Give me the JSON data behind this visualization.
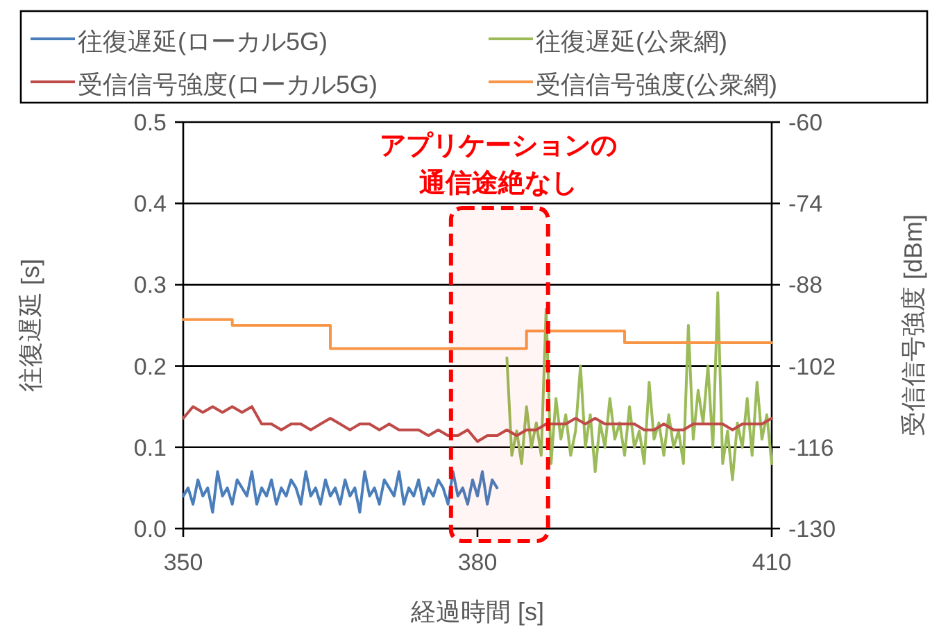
{
  "chart_data": {
    "type": "line",
    "xlabel": "経過時間 [s]",
    "ylabel": "往復遅延 [s]",
    "y2label": "受信信号強度 [dBm]",
    "xlim": [
      350,
      410
    ],
    "xticks": [
      350,
      380,
      410
    ],
    "ylim": [
      0,
      0.5
    ],
    "yticks": [
      {
        "value": 0,
        "label": "0.0"
      },
      0.1,
      0.2,
      0.3,
      0.4,
      0.5
    ],
    "y2lim": [
      -130,
      -60
    ],
    "y2ticks": [
      -60,
      -74,
      -88,
      -102,
      -116,
      -130
    ],
    "grid": "y",
    "legend": "top",
    "annotations": [
      "アプリケーションの通信途絶なし"
    ],
    "bands": [
      {
        "axis": "x",
        "from": 377.3,
        "to": 387.2,
        "color": "#ff0000"
      }
    ],
    "series": [
      {
        "name": "往復遅延(ローカル5G)",
        "color": "#4a7ebb",
        "x": [
          350,
          350.5,
          351,
          351.5,
          352,
          352.5,
          353,
          353.5,
          354,
          354.5,
          355,
          355.5,
          356,
          356.5,
          357,
          357.5,
          358,
          358.5,
          359,
          359.5,
          360,
          360.5,
          361,
          361.5,
          362,
          362.5,
          363,
          363.5,
          364,
          364.5,
          365,
          365.5,
          366,
          366.5,
          367,
          367.5,
          368,
          368.5,
          369,
          369.5,
          370,
          370.5,
          371,
          371.5,
          372,
          372.5,
          373,
          373.5,
          374,
          374.5,
          375,
          375.5,
          376,
          376.5,
          377,
          377.5,
          378,
          378.5,
          379,
          379.5,
          380,
          380.5,
          381,
          381.5,
          382
        ],
        "values": [
          0.04,
          0.05,
          0.03,
          0.06,
          0.04,
          0.05,
          0.02,
          0.07,
          0.04,
          0.05,
          0.03,
          0.06,
          0.05,
          0.04,
          0.07,
          0.03,
          0.05,
          0.04,
          0.06,
          0.03,
          0.05,
          0.04,
          0.06,
          0.05,
          0.03,
          0.07,
          0.04,
          0.05,
          0.03,
          0.06,
          0.04,
          0.05,
          0.03,
          0.06,
          0.04,
          0.05,
          0.02,
          0.07,
          0.04,
          0.05,
          0.03,
          0.06,
          0.05,
          0.04,
          0.07,
          0.03,
          0.05,
          0.04,
          0.06,
          0.03,
          0.05,
          0.04,
          0.06,
          0.05,
          0.03,
          0.07,
          0.04,
          0.05,
          0.03,
          0.06,
          0.04,
          0.07,
          0.03,
          0.06,
          0.05
        ]
      },
      {
        "name": "往復遅延(公衆網)",
        "color": "#9bbb59",
        "x": [
          383,
          383.5,
          384,
          384.5,
          385,
          385.5,
          386,
          386.5,
          387,
          387.5,
          388,
          388.5,
          389,
          389.5,
          390,
          390.5,
          391,
          391.5,
          392,
          392.5,
          393,
          393.5,
          394,
          394.5,
          395,
          395.5,
          396,
          396.5,
          397,
          397.5,
          398,
          398.5,
          399,
          399.5,
          400,
          400.5,
          401,
          401.5,
          402,
          402.5,
          403,
          403.5,
          404,
          404.5,
          405,
          405.5,
          406,
          406.5,
          407,
          407.5,
          408,
          408.5,
          409,
          409.5,
          410
        ],
        "values": [
          0.21,
          0.09,
          0.12,
          0.08,
          0.15,
          0.1,
          0.13,
          0.09,
          0.27,
          0.08,
          0.16,
          0.11,
          0.14,
          0.09,
          0.12,
          0.2,
          0.1,
          0.14,
          0.07,
          0.13,
          0.1,
          0.16,
          0.11,
          0.13,
          0.09,
          0.15,
          0.1,
          0.12,
          0.08,
          0.18,
          0.11,
          0.13,
          0.09,
          0.14,
          0.1,
          0.12,
          0.08,
          0.25,
          0.11,
          0.17,
          0.13,
          0.2,
          0.1,
          0.29,
          0.08,
          0.12,
          0.06,
          0.13,
          0.1,
          0.16,
          0.09,
          0.18,
          0.11,
          0.14,
          0.08
        ]
      },
      {
        "name": "受信信号強度(ローカル5G)",
        "color": "#be4b48",
        "axis": "y2",
        "x": [
          350,
          351,
          352,
          353,
          354,
          355,
          356,
          357,
          358,
          359,
          360,
          361,
          362,
          363,
          364,
          365,
          366,
          367,
          368,
          369,
          370,
          371,
          372,
          373,
          374,
          375,
          376,
          377,
          378,
          379,
          380,
          381,
          382,
          383,
          384,
          385,
          386,
          387,
          388,
          389,
          390,
          391,
          392,
          393,
          394,
          395,
          396,
          397,
          398,
          399,
          400,
          401,
          402,
          403,
          404,
          405,
          406,
          407,
          408,
          409,
          410
        ],
        "values": [
          -111,
          -109,
          -110,
          -109,
          -110,
          -109,
          -110,
          -109,
          -112,
          -112,
          -113,
          -112,
          -112,
          -113,
          -112,
          -111,
          -112,
          -113,
          -112,
          -112,
          -113,
          -112,
          -113,
          -113,
          -113,
          -114,
          -113,
          -114,
          -114,
          -113,
          -115,
          -114,
          -114,
          -113,
          -114,
          -113,
          -113,
          -112,
          -112,
          -112,
          -111,
          -112,
          -111,
          -112,
          -112,
          -112,
          -112,
          -113,
          -113,
          -112,
          -113,
          -113,
          -112,
          -112,
          -112,
          -112,
          -113,
          -112,
          -112,
          -112,
          -111
        ]
      },
      {
        "name": "受信信号強度(公衆網)",
        "color": "#f79646",
        "axis": "y2",
        "type": "step",
        "x": [
          350,
          355,
          365,
          385,
          395,
          410
        ],
        "values": [
          -94,
          -95,
          -99,
          -96,
          -98,
          -98
        ]
      }
    ]
  }
}
